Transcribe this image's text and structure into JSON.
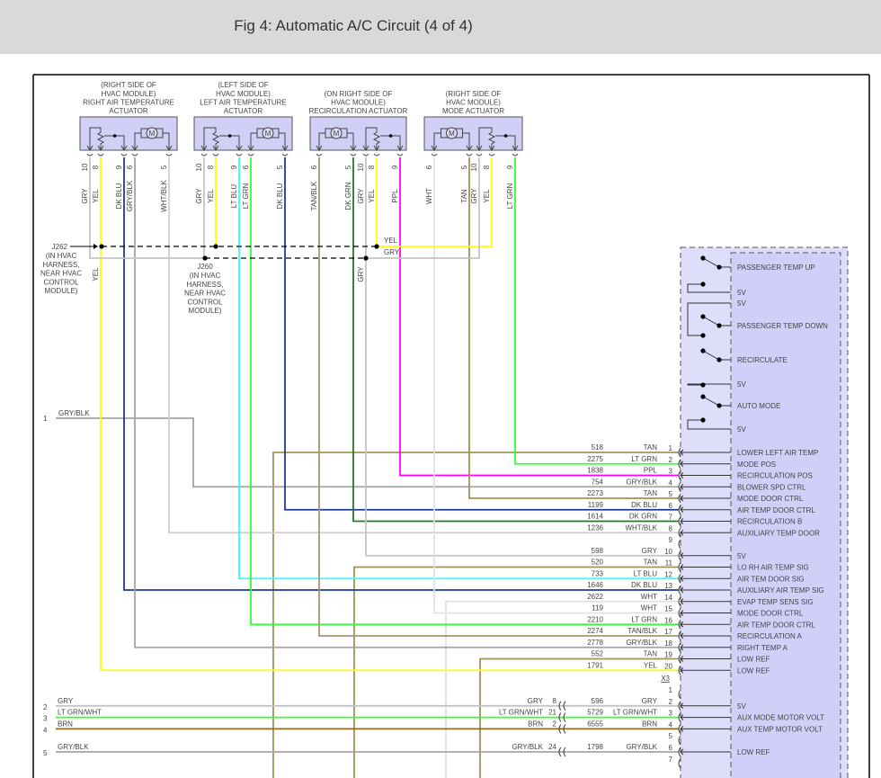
{
  "title": "Fig 4: Automatic A/C Circuit (4 of 4)",
  "wire_colors": {
    "GRY": "#c4c4c4",
    "YEL": "#ffff00",
    "DK BLU": "#1f3a93",
    "GRY/BLK": "#a4a4a4",
    "WHT/BLK": "#cfcfcf",
    "LT BLU": "#33ffff",
    "LT GRN": "#33ff33",
    "TAN/BLK": "#a89770",
    "DK GRN": "#1e7d1e",
    "PPL": "#ff00ff",
    "WHT": "#e2e2e2",
    "TAN": "#a8905a",
    "BRN": "#8f6b1e",
    "LT GRN/WHT": "#33ff33"
  },
  "actuators": [
    {
      "label": [
        "(RIGHT SIDE OF",
        "HVAC MODULE)",
        "RIGHT AIR TEMPERATURE",
        "ACTUATOR"
      ],
      "pins": [
        {
          "num": "10",
          "color": "GRY"
        },
        {
          "num": "8",
          "color": "YEL"
        },
        {
          "num": "9",
          "color": "DK BLU"
        },
        {
          "num": "6",
          "color": "GRY/BLK"
        },
        {
          "num": "5",
          "color": "WHT/BLK"
        }
      ]
    },
    {
      "label": [
        "(LEFT SIDE OF",
        "HVAC MODULE)",
        "LEFT AIR TEMPERATURE",
        "ACTUATOR"
      ],
      "pins": [
        {
          "num": "10",
          "color": "GRY"
        },
        {
          "num": "8",
          "color": "YEL"
        },
        {
          "num": "9",
          "color": "LT BLU"
        },
        {
          "num": "6",
          "color": "LT GRN"
        },
        {
          "num": "5",
          "color": "DK BLU"
        }
      ]
    },
    {
      "label": [
        "(ON RIGHT SIDE OF",
        "HVAC MODULE)",
        "RECIRCULATION ACTUATOR"
      ],
      "pins": [
        {
          "num": "6",
          "color": "TAN/BLK"
        },
        {
          "num": "5",
          "color": "DK GRN"
        },
        {
          "num": "10",
          "color": "GRY"
        },
        {
          "num": "8",
          "color": "YEL"
        },
        {
          "num": "9",
          "color": "PPL"
        }
      ]
    },
    {
      "label": [
        "(RIGHT SIDE OF",
        "HVAC MODULE)",
        "MODE ACTUATOR"
      ],
      "pins": [
        {
          "num": "6",
          "color": "WHT"
        },
        {
          "num": "5",
          "color": "TAN"
        },
        {
          "num": "10",
          "color": "GRY"
        },
        {
          "num": "8",
          "color": "YEL"
        },
        {
          "num": "9",
          "color": "LT GRN"
        }
      ]
    }
  ],
  "motor_symbol": "M",
  "splices": {
    "j262": {
      "id": "J262",
      "desc": [
        "(IN HVAC",
        "HARNESS,",
        "NEAR HVAC",
        "CONTROL",
        "MODULE)"
      ]
    },
    "j260": {
      "id": "J260",
      "desc": [
        "(IN HVAC",
        "HARNESS,",
        "NEAR HVAC",
        "CONTROL",
        "MODULE)"
      ]
    },
    "yel_label": "YEL",
    "gry_label": "GRY",
    "yel_vlabel": "YEL",
    "gry_vlabel": "GRY"
  },
  "left_pins": [
    {
      "num": "1",
      "color": "GRY/BLK"
    },
    {
      "num": "2",
      "color": "GRY"
    },
    {
      "num": "3",
      "color": "LT GRN/WHT"
    },
    {
      "num": "4",
      "color": "BRN"
    },
    {
      "num": "5",
      "color": "GRY/BLK"
    }
  ],
  "module": {
    "switches": [
      {
        "label": "PASSENGER TEMP UP"
      },
      {
        "label": "5V"
      },
      {
        "label": "5V"
      },
      {
        "label": "PASSENGER TEMP DOWN"
      },
      {
        "label": "RECIRCULATE"
      },
      {
        "label": "5V"
      },
      {
        "label": "AUTO MODE"
      },
      {
        "label": "5V"
      }
    ],
    "connector_x3": {
      "name": "X3",
      "rows": [
        {
          "pin": "1",
          "circuit": "518",
          "color": "TAN",
          "func": "LOWER LEFT AIR TEMP"
        },
        {
          "pin": "2",
          "circuit": "2275",
          "color": "LT GRN",
          "func": "MODE POS"
        },
        {
          "pin": "3",
          "circuit": "1838",
          "color": "PPL",
          "func": "RECIRCULATION POS"
        },
        {
          "pin": "4",
          "circuit": "754",
          "color": "GRY/BLK",
          "func": "BLOWER SPD CTRL"
        },
        {
          "pin": "5",
          "circuit": "2273",
          "color": "TAN",
          "func": "MODE DOOR CTRL"
        },
        {
          "pin": "6",
          "circuit": "1199",
          "color": "DK BLU",
          "func": "AIR TEMP DOOR CTRL"
        },
        {
          "pin": "7",
          "circuit": "1614",
          "color": "DK GRN",
          "func": "RECIRCULATION B"
        },
        {
          "pin": "8",
          "circuit": "1236",
          "color": "WHT/BLK",
          "func": "AUXILIARY TEMP DOOR"
        },
        {
          "pin": "9",
          "circuit": "",
          "color": "",
          "func": ""
        },
        {
          "pin": "10",
          "circuit": "598",
          "color": "GRY",
          "func": "5V"
        },
        {
          "pin": "11",
          "circuit": "520",
          "color": "TAN",
          "func": "LO RH AIR TEMP SIG"
        },
        {
          "pin": "12",
          "circuit": "733",
          "color": "LT BLU",
          "func": "AIR TEM DOOR SIG"
        },
        {
          "pin": "13",
          "circuit": "1646",
          "color": "DK BLU",
          "func": "AUXILIARY AIR TEMP SIG"
        },
        {
          "pin": "14",
          "circuit": "2622",
          "color": "WHT",
          "func": "EVAP TEMP SENS SIG"
        },
        {
          "pin": "15",
          "circuit": "119",
          "color": "WHT",
          "func": "MODE DOOR CTRL"
        },
        {
          "pin": "16",
          "circuit": "2210",
          "color": "LT GRN",
          "func": "AIR TEMP DOOR CTRL"
        },
        {
          "pin": "17",
          "circuit": "2274",
          "color": "TAN/BLK",
          "func": "RECIRCULATION A"
        },
        {
          "pin": "18",
          "circuit": "2778",
          "color": "GRY/BLK",
          "func": "RIGHT TEMP A"
        },
        {
          "pin": "19",
          "circuit": "552",
          "color": "TAN",
          "func": "LOW REF"
        },
        {
          "pin": "20",
          "circuit": "1791",
          "color": "YEL",
          "func": "LOW REF"
        }
      ]
    },
    "connector_2": {
      "rows": [
        {
          "pin": "1",
          "circuit": "",
          "color": "",
          "func": "",
          "inline_pin": "",
          "inline_color": ""
        },
        {
          "pin": "2",
          "circuit": "596",
          "color": "GRY",
          "func": "5V",
          "inline_pin": "8",
          "inline_color": "GRY"
        },
        {
          "pin": "3",
          "circuit": "5729",
          "color": "LT GRN/WHT",
          "func": "AUX MODE MOTOR VOLT",
          "inline_pin": "21",
          "inline_color": "LT GRN/WHT"
        },
        {
          "pin": "4",
          "circuit": "6555",
          "color": "BRN",
          "func": "AUX TEMP MOTOR VOLT",
          "inline_pin": "2",
          "inline_color": "BRN"
        },
        {
          "pin": "5",
          "circuit": "",
          "color": "",
          "func": "",
          "inline_pin": "",
          "inline_color": ""
        },
        {
          "pin": "6",
          "circuit": "1798",
          "color": "GRY/BLK",
          "func": "LOW REF",
          "inline_pin": "24",
          "inline_color": "GRY/BLK"
        },
        {
          "pin": "7",
          "circuit": "",
          "color": "",
          "func": "",
          "inline_pin": "",
          "inline_color": ""
        }
      ]
    }
  }
}
